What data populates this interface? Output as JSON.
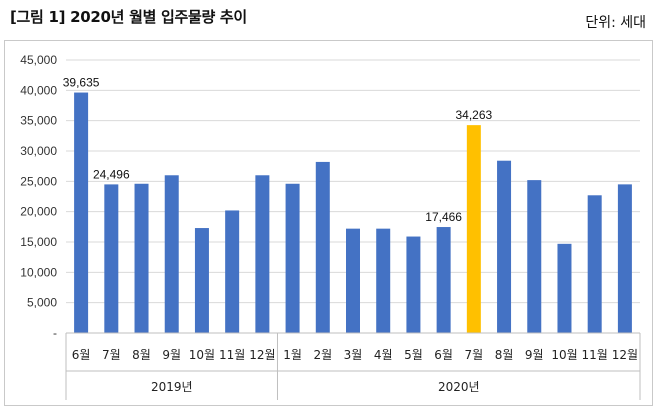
{
  "header": {
    "title": "[그림 1] 2020년 월별 입주물량 추이",
    "unit": "단위: 세대"
  },
  "colors": {
    "bar": "#4472C4",
    "highlight": "#FFC000",
    "grid": "#d9d9d9"
  },
  "chart_data": {
    "type": "bar",
    "title": "",
    "xlabel": "",
    "ylabel": "",
    "ylim": [
      0,
      45000
    ],
    "yticks": [
      0,
      5000,
      10000,
      15000,
      20000,
      25000,
      30000,
      35000,
      40000,
      45000
    ],
    "ytick_labels": [
      "-",
      "5,000",
      "10,000",
      "15,000",
      "20,000",
      "25,000",
      "30,000",
      "35,000",
      "40,000",
      "45,000"
    ],
    "grid": true,
    "legend": "none",
    "categories": [
      "6월",
      "7월",
      "8월",
      "9월",
      "10월",
      "11월",
      "12월",
      "1월",
      "2월",
      "3월",
      "4월",
      "5월",
      "6월",
      "7월",
      "8월",
      "9월",
      "10월",
      "11월",
      "12월"
    ],
    "groups": [
      {
        "label": "2019년",
        "start": 0,
        "end": 6
      },
      {
        "label": "2020년",
        "start": 7,
        "end": 18
      }
    ],
    "values": [
      39635,
      24496,
      24600,
      26000,
      17300,
      20200,
      26000,
      24600,
      28200,
      17200,
      17200,
      15900,
      17466,
      34263,
      28400,
      25200,
      14700,
      22700,
      24500
    ],
    "highlight_index": 13,
    "data_labels": [
      {
        "index": 0,
        "text": "39,635"
      },
      {
        "index": 1,
        "text": "24,496"
      },
      {
        "index": 12,
        "text": "17,466"
      },
      {
        "index": 13,
        "text": "34,263"
      }
    ]
  }
}
